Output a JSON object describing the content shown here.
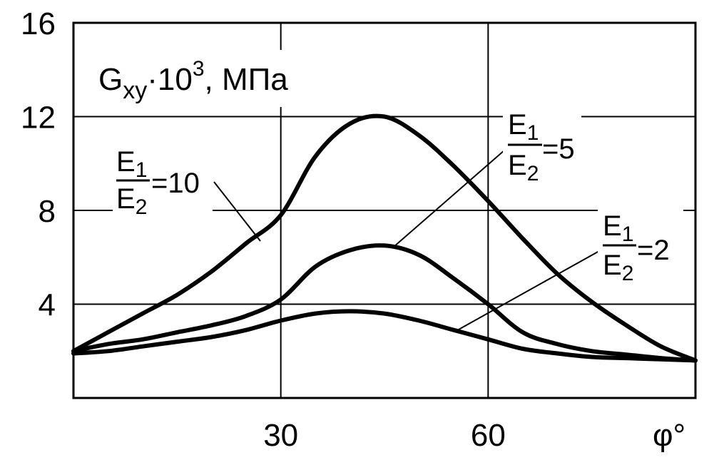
{
  "chart_data": {
    "type": "line",
    "ylabel": {
      "main": "G",
      "sub": "xy",
      "mult": "·10",
      "sup": "3",
      "unit": ", МПа"
    },
    "xlabel": "φ°",
    "xlim": [
      0,
      90
    ],
    "ylim": [
      0,
      16
    ],
    "xticks": [
      30,
      60
    ],
    "xtick_labels": [
      "30",
      "60"
    ],
    "yticks": [
      4,
      8,
      12,
      16
    ],
    "ytick_labels": [
      "4",
      "8",
      "12",
      "16"
    ],
    "grid": true,
    "series": [
      {
        "name": "E1/E2=10",
        "label": {
          "num": "E",
          "num_sub": "1",
          "den": "E",
          "den_sub": "2",
          "eq": "=10"
        },
        "x": [
          0,
          5,
          10,
          15,
          20,
          25,
          30,
          35,
          40,
          45,
          50,
          55,
          60,
          65,
          70,
          75,
          80,
          85,
          90
        ],
        "y": [
          2.0,
          2.8,
          3.6,
          4.4,
          5.4,
          6.6,
          7.8,
          10.3,
          11.7,
          12.0,
          11.2,
          9.9,
          8.4,
          6.8,
          5.3,
          4.1,
          3.1,
          2.2,
          1.6
        ]
      },
      {
        "name": "E1/E2=5",
        "label": {
          "num": "E",
          "num_sub": "1",
          "den": "E",
          "den_sub": "2",
          "eq": "=5"
        },
        "x": [
          0,
          5,
          10,
          15,
          20,
          25,
          30,
          35,
          40,
          45,
          50,
          55,
          60,
          65,
          70,
          75,
          80,
          85,
          90
        ],
        "y": [
          2.0,
          2.3,
          2.5,
          2.8,
          3.1,
          3.5,
          4.2,
          5.6,
          6.3,
          6.5,
          6.1,
          5.1,
          4.0,
          2.8,
          2.3,
          2.0,
          1.85,
          1.7,
          1.6
        ]
      },
      {
        "name": "E1/E2=2",
        "label": {
          "num": "E",
          "num_sub": "1",
          "den": "E",
          "den_sub": "2",
          "eq": "=2"
        },
        "x": [
          0,
          5,
          10,
          15,
          20,
          25,
          30,
          35,
          40,
          45,
          50,
          55,
          60,
          65,
          70,
          75,
          80,
          85,
          90
        ],
        "y": [
          1.9,
          2.0,
          2.2,
          2.4,
          2.6,
          2.9,
          3.3,
          3.6,
          3.7,
          3.6,
          3.3,
          2.9,
          2.5,
          2.1,
          1.9,
          1.75,
          1.7,
          1.65,
          1.6
        ]
      }
    ]
  }
}
